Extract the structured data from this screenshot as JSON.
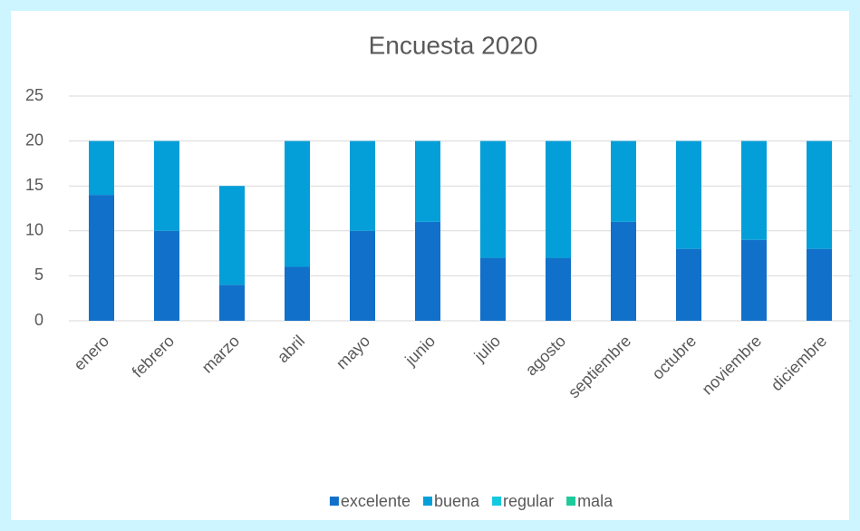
{
  "chart_data": {
    "type": "stacked_bar",
    "title": "Encuesta 2020",
    "categories": [
      "enero",
      "febrero",
      "marzo",
      "abril",
      "mayo",
      "junio",
      "julio",
      "agosto",
      "septiembre",
      "octubre",
      "noviembre",
      "diciembre"
    ],
    "series": [
      {
        "name": "excelente",
        "color": "#1170c9",
        "values": [
          14,
          10,
          4,
          6,
          10,
          11,
          7,
          7,
          11,
          8,
          9,
          8
        ]
      },
      {
        "name": "buena",
        "color": "#049fd9",
        "values": [
          6,
          10,
          11,
          14,
          10,
          9,
          13,
          13,
          9,
          12,
          11,
          12
        ]
      },
      {
        "name": "regular",
        "color": "#12c9e0",
        "values": [
          0,
          0,
          0,
          0,
          0,
          0,
          0,
          0,
          0,
          0,
          0,
          0
        ]
      },
      {
        "name": "mala",
        "color": "#1ec99a",
        "values": [
          0,
          0,
          0,
          0,
          0,
          0,
          0,
          0,
          0,
          0,
          0,
          0
        ]
      }
    ],
    "ylim": [
      0,
      25
    ],
    "yticks": [
      0,
      5,
      10,
      15,
      20,
      25
    ],
    "grid": true,
    "legend": "bottom"
  }
}
